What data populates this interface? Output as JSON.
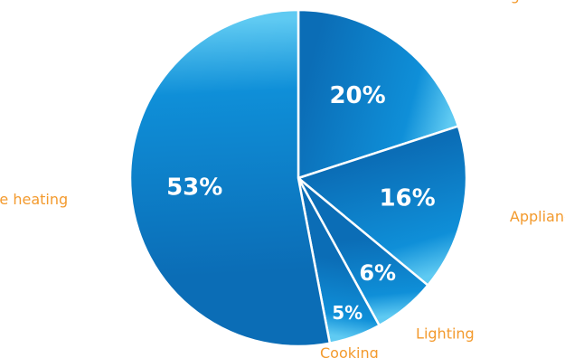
{
  "chart_data": {
    "type": "pie",
    "categories": [
      "Water heating",
      "Appliances",
      "Lighting",
      "Cooking",
      "Space heating"
    ],
    "values": [
      20,
      16,
      6,
      5,
      53
    ],
    "value_labels": [
      "20%",
      "16%",
      "6%",
      "5%",
      "53%"
    ],
    "start_angle_deg": 0,
    "direction": "clockwise",
    "legend": "none",
    "labels": "outside-slices"
  },
  "colors": {
    "slice_dark": "#0b6db6",
    "slice_mid": "#0f8fd8",
    "slice_light": "#5fcaf2",
    "label_text": "#f39a2d",
    "value_text": "#ffffff",
    "separator": "#ffffff"
  }
}
